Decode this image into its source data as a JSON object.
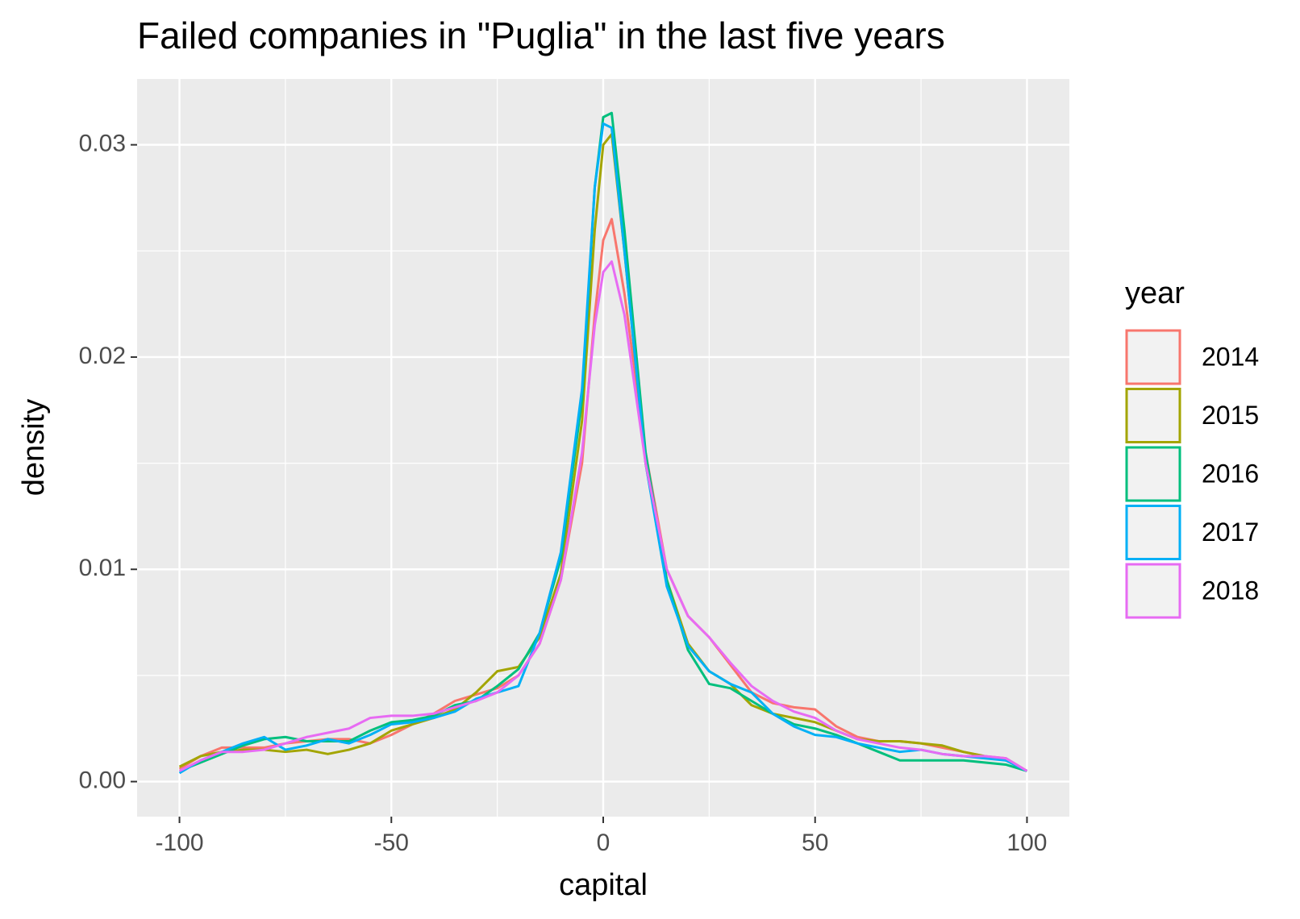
{
  "chart_data": {
    "type": "line",
    "title": "Failed companies in \"Puglia\" in the last five years",
    "x_label": "capital",
    "y_label": "density",
    "legend_title": "year",
    "x": [
      -100,
      -95,
      -90,
      -85,
      -80,
      -75,
      -70,
      -65,
      -60,
      -55,
      -50,
      -45,
      -40,
      -35,
      -30,
      -25,
      -20,
      -15,
      -10,
      -5,
      -2,
      0,
      2,
      5,
      10,
      15,
      20,
      25,
      30,
      35,
      40,
      45,
      50,
      55,
      60,
      65,
      70,
      75,
      80,
      85,
      90,
      95,
      100
    ],
    "series": [
      {
        "name": "2014",
        "color": "#f8766d",
        "values": [
          0.0006,
          0.0012,
          0.0016,
          0.0016,
          0.0016,
          0.0018,
          0.0019,
          0.002,
          0.002,
          0.0018,
          0.0022,
          0.0027,
          0.0032,
          0.0038,
          0.0041,
          0.0044,
          0.005,
          0.0065,
          0.0095,
          0.015,
          0.022,
          0.0255,
          0.0265,
          0.023,
          0.0155,
          0.01,
          0.0078,
          0.0068,
          0.0055,
          0.0042,
          0.0037,
          0.0035,
          0.0034,
          0.0026,
          0.0021,
          0.0019,
          0.0019,
          0.0018,
          0.0016,
          0.0014,
          0.0012,
          0.0011,
          0.0005
        ]
      },
      {
        "name": "2015",
        "color": "#a3a500",
        "values": [
          0.0007,
          0.0012,
          0.0014,
          0.0015,
          0.0015,
          0.0014,
          0.0015,
          0.0013,
          0.0015,
          0.0018,
          0.0024,
          0.0027,
          0.003,
          0.0034,
          0.0042,
          0.0052,
          0.0054,
          0.0068,
          0.0098,
          0.017,
          0.026,
          0.03,
          0.0305,
          0.025,
          0.015,
          0.0095,
          0.0065,
          0.0052,
          0.0046,
          0.0036,
          0.0032,
          0.003,
          0.0028,
          0.0024,
          0.002,
          0.0019,
          0.0019,
          0.0018,
          0.0017,
          0.0014,
          0.0012,
          0.001,
          0.0005
        ]
      },
      {
        "name": "2016",
        "color": "#00bf7d",
        "values": [
          0.0005,
          0.0009,
          0.0013,
          0.0017,
          0.002,
          0.0021,
          0.0019,
          0.0019,
          0.0019,
          0.0024,
          0.0028,
          0.0029,
          0.0031,
          0.0036,
          0.0038,
          0.0045,
          0.0053,
          0.007,
          0.0105,
          0.018,
          0.028,
          0.0313,
          0.0315,
          0.026,
          0.0155,
          0.0095,
          0.0062,
          0.0046,
          0.0044,
          0.0038,
          0.0032,
          0.0027,
          0.0025,
          0.0022,
          0.0018,
          0.0014,
          0.001,
          0.001,
          0.001,
          0.001,
          0.0009,
          0.0008,
          0.0005
        ]
      },
      {
        "name": "2017",
        "color": "#00b0f6",
        "values": [
          0.0004,
          0.001,
          0.0014,
          0.0018,
          0.0021,
          0.0015,
          0.0017,
          0.002,
          0.0018,
          0.0022,
          0.0027,
          0.0028,
          0.003,
          0.0033,
          0.0039,
          0.0042,
          0.0045,
          0.007,
          0.0108,
          0.0185,
          0.028,
          0.031,
          0.0308,
          0.025,
          0.015,
          0.0092,
          0.0064,
          0.0052,
          0.0046,
          0.0042,
          0.0032,
          0.0026,
          0.0022,
          0.0021,
          0.0018,
          0.0016,
          0.0014,
          0.0015,
          0.0013,
          0.0012,
          0.0011,
          0.001,
          0.0005
        ]
      },
      {
        "name": "2018",
        "color": "#e76bf3",
        "values": [
          0.0005,
          0.001,
          0.0014,
          0.0014,
          0.0015,
          0.0018,
          0.0021,
          0.0023,
          0.0025,
          0.003,
          0.0031,
          0.0031,
          0.0032,
          0.0035,
          0.0038,
          0.0042,
          0.005,
          0.0065,
          0.0095,
          0.0155,
          0.0215,
          0.024,
          0.0245,
          0.022,
          0.015,
          0.01,
          0.0078,
          0.0068,
          0.0056,
          0.0045,
          0.0038,
          0.0033,
          0.003,
          0.0024,
          0.002,
          0.0018,
          0.0016,
          0.0015,
          0.0013,
          0.0012,
          0.0012,
          0.0011,
          0.0005
        ]
      }
    ],
    "xlim": [
      -110,
      110
    ],
    "ylim": [
      -0.00165,
      0.0331
    ],
    "xticks": [
      -100,
      -50,
      0,
      50,
      100
    ],
    "yticks": [
      {
        "value": 0,
        "label": "0.00"
      },
      0.01,
      0.02,
      0.03
    ],
    "grid": true,
    "legend_position": "right"
  }
}
